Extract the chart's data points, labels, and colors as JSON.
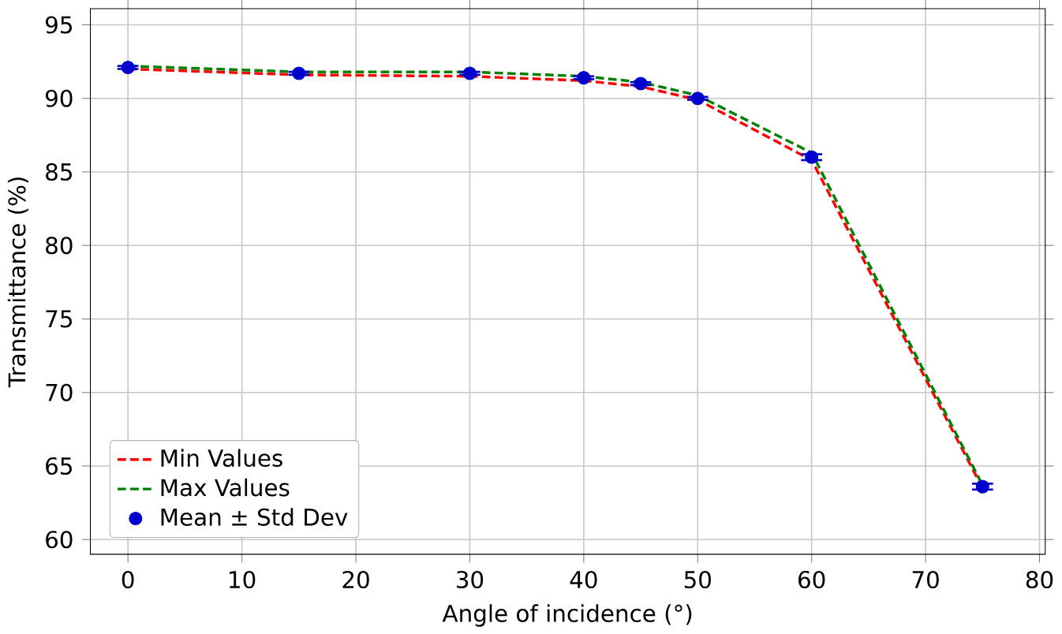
{
  "chart_data": {
    "type": "line",
    "xlabel": "Angle of incidence (°)",
    "ylabel": "Transmittance (%)",
    "x": [
      0,
      15,
      30,
      40,
      45,
      50,
      60,
      75
    ],
    "series": [
      {
        "name": "Min Values",
        "color": "#ff0000",
        "line_style": "dashed",
        "marker": "none",
        "values": [
          92.0,
          91.6,
          91.5,
          91.2,
          90.8,
          89.9,
          85.8,
          63.5
        ]
      },
      {
        "name": "Max Values",
        "color": "#008000",
        "line_style": "dashed",
        "marker": "none",
        "values": [
          92.2,
          91.8,
          91.8,
          91.5,
          91.1,
          90.2,
          86.3,
          63.7
        ]
      },
      {
        "name": "Mean ± Std Dev",
        "type": "scatter",
        "color": "#0000cc",
        "marker": "circle",
        "values": [
          92.1,
          91.7,
          91.7,
          91.4,
          91.0,
          90.0,
          86.0,
          63.6
        ],
        "errors": [
          0.1,
          0.1,
          0.1,
          0.1,
          0.1,
          0.1,
          0.2,
          0.2
        ]
      }
    ],
    "xlim": [
      -3.3,
      80.5
    ],
    "ylim": [
      59.0,
      96.1
    ],
    "xticks": [
      0,
      10,
      20,
      30,
      40,
      50,
      60,
      70,
      80
    ],
    "yticks": [
      60,
      65,
      70,
      75,
      80,
      85,
      90,
      95
    ],
    "grid": true,
    "legend": "bottom left"
  }
}
